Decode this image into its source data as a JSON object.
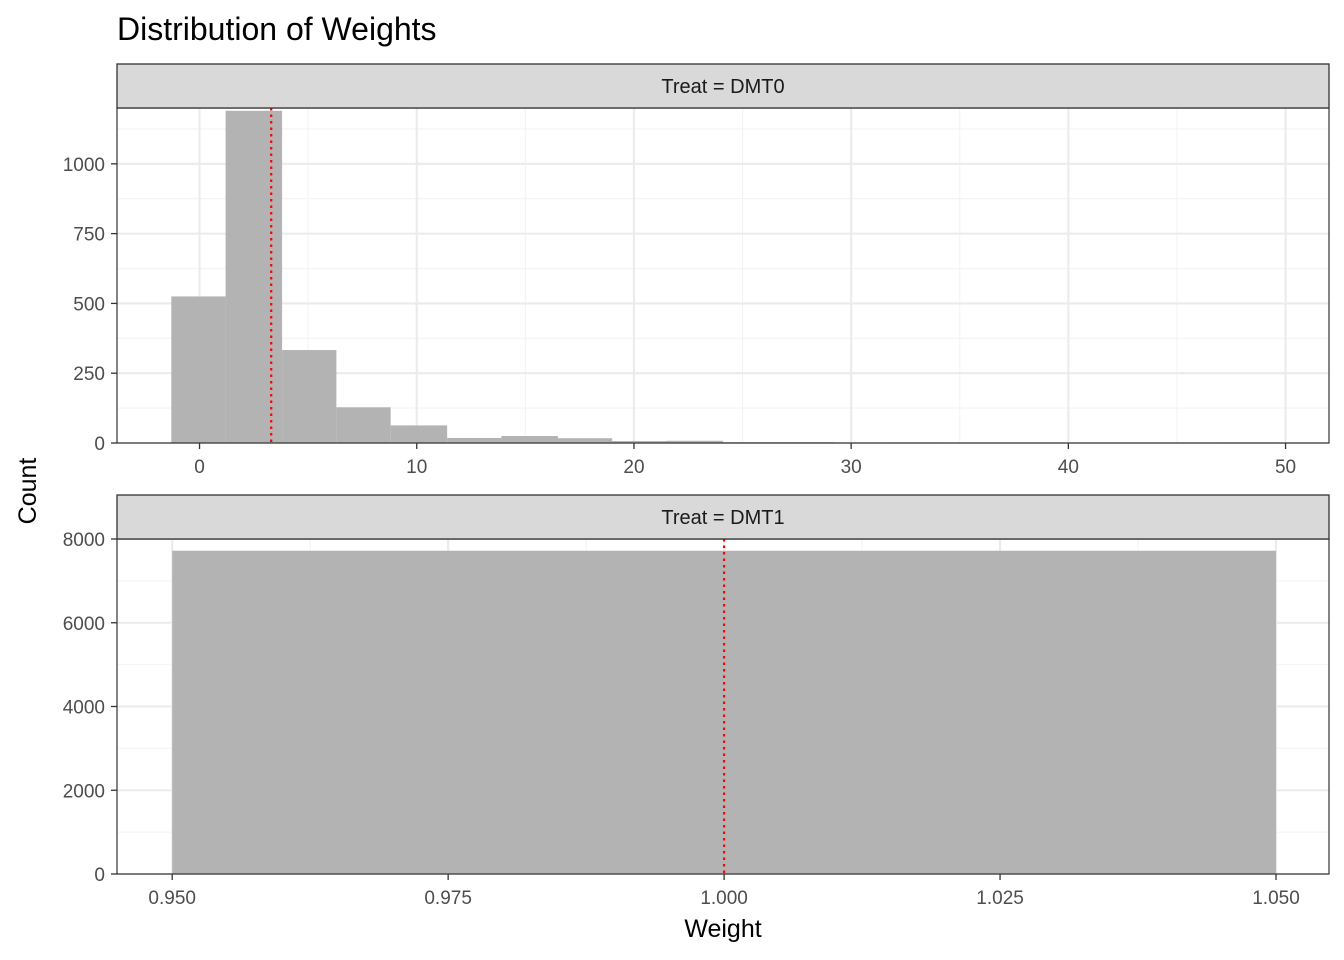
{
  "title": "Distribution of Weights",
  "xlabel": "Weight",
  "ylabel": "Count",
  "colors": {
    "bar": "#b3b3b3",
    "reference_line": "#ff0000",
    "strip_fill": "#d9d9d9",
    "strip_border": "#333333",
    "grid_major": "#ebebeb",
    "grid_minor": "#f3f3f3",
    "panel_border": "#333333"
  },
  "chart_data": [
    {
      "type": "bar",
      "facet": "Treat = DMT0",
      "xlim": [
        -3.8,
        52.0
      ],
      "ylim": [
        0,
        1200
      ],
      "x_ticks": [
        0,
        10,
        20,
        30,
        40,
        50
      ],
      "x_tick_labels": [
        "0",
        "10",
        "20",
        "30",
        "40",
        "50"
      ],
      "x_minor": [
        5,
        15,
        25,
        35,
        45
      ],
      "y_ticks": [
        0,
        250,
        500,
        750,
        1000
      ],
      "y_tick_labels": [
        "0",
        "250",
        "500",
        "750",
        "1000"
      ],
      "y_minor": [
        125,
        375,
        625,
        875,
        1125
      ],
      "bins": [
        {
          "x0": -1.3,
          "x1": 1.2,
          "count": 525
        },
        {
          "x0": 1.2,
          "x1": 3.8,
          "count": 1190
        },
        {
          "x0": 3.8,
          "x1": 6.3,
          "count": 333
        },
        {
          "x0": 6.3,
          "x1": 8.8,
          "count": 128
        },
        {
          "x0": 8.8,
          "x1": 11.4,
          "count": 63
        },
        {
          "x0": 11.4,
          "x1": 13.9,
          "count": 18
        },
        {
          "x0": 13.9,
          "x1": 16.5,
          "count": 25
        },
        {
          "x0": 16.5,
          "x1": 19.0,
          "count": 17
        },
        {
          "x0": 19.0,
          "x1": 21.5,
          "count": 7
        },
        {
          "x0": 21.5,
          "x1": 24.1,
          "count": 8
        },
        {
          "x0": 24.1,
          "x1": 26.6,
          "count": 3
        },
        {
          "x0": 26.6,
          "x1": 29.2,
          "count": 3
        },
        {
          "x0": 29.2,
          "x1": 31.7,
          "count": 1
        },
        {
          "x0": 31.7,
          "x1": 34.2,
          "count": 2
        },
        {
          "x0": 34.2,
          "x1": 36.8,
          "count": 1
        },
        {
          "x0": 36.8,
          "x1": 39.3,
          "count": 1
        },
        {
          "x0": 39.3,
          "x1": 41.9,
          "count": 1
        },
        {
          "x0": 41.9,
          "x1": 44.4,
          "count": 1
        },
        {
          "x0": 44.4,
          "x1": 46.9,
          "count": 1
        },
        {
          "x0": 46.9,
          "x1": 49.5,
          "count": 2
        }
      ],
      "reference_x": 3.3
    },
    {
      "type": "bar",
      "facet": "Treat = DMT1",
      "xlim": [
        0.945,
        1.0548
      ],
      "ylim": [
        0,
        8000
      ],
      "x_ticks": [
        0.95,
        0.975,
        1.0,
        1.025,
        1.05
      ],
      "x_tick_labels": [
        "0.950",
        "0.975",
        "1.000",
        "1.025",
        "1.050"
      ],
      "x_minor": [
        0.9625,
        0.9875,
        1.0125,
        1.0375
      ],
      "y_ticks": [
        0,
        2000,
        4000,
        6000,
        8000
      ],
      "y_tick_labels": [
        "0",
        "2000",
        "4000",
        "6000",
        "8000"
      ],
      "y_minor": [
        1000,
        3000,
        5000,
        7000
      ],
      "bins": [
        {
          "x0": 0.95,
          "x1": 1.05,
          "count": 7720
        }
      ],
      "reference_x": 1.0
    }
  ]
}
